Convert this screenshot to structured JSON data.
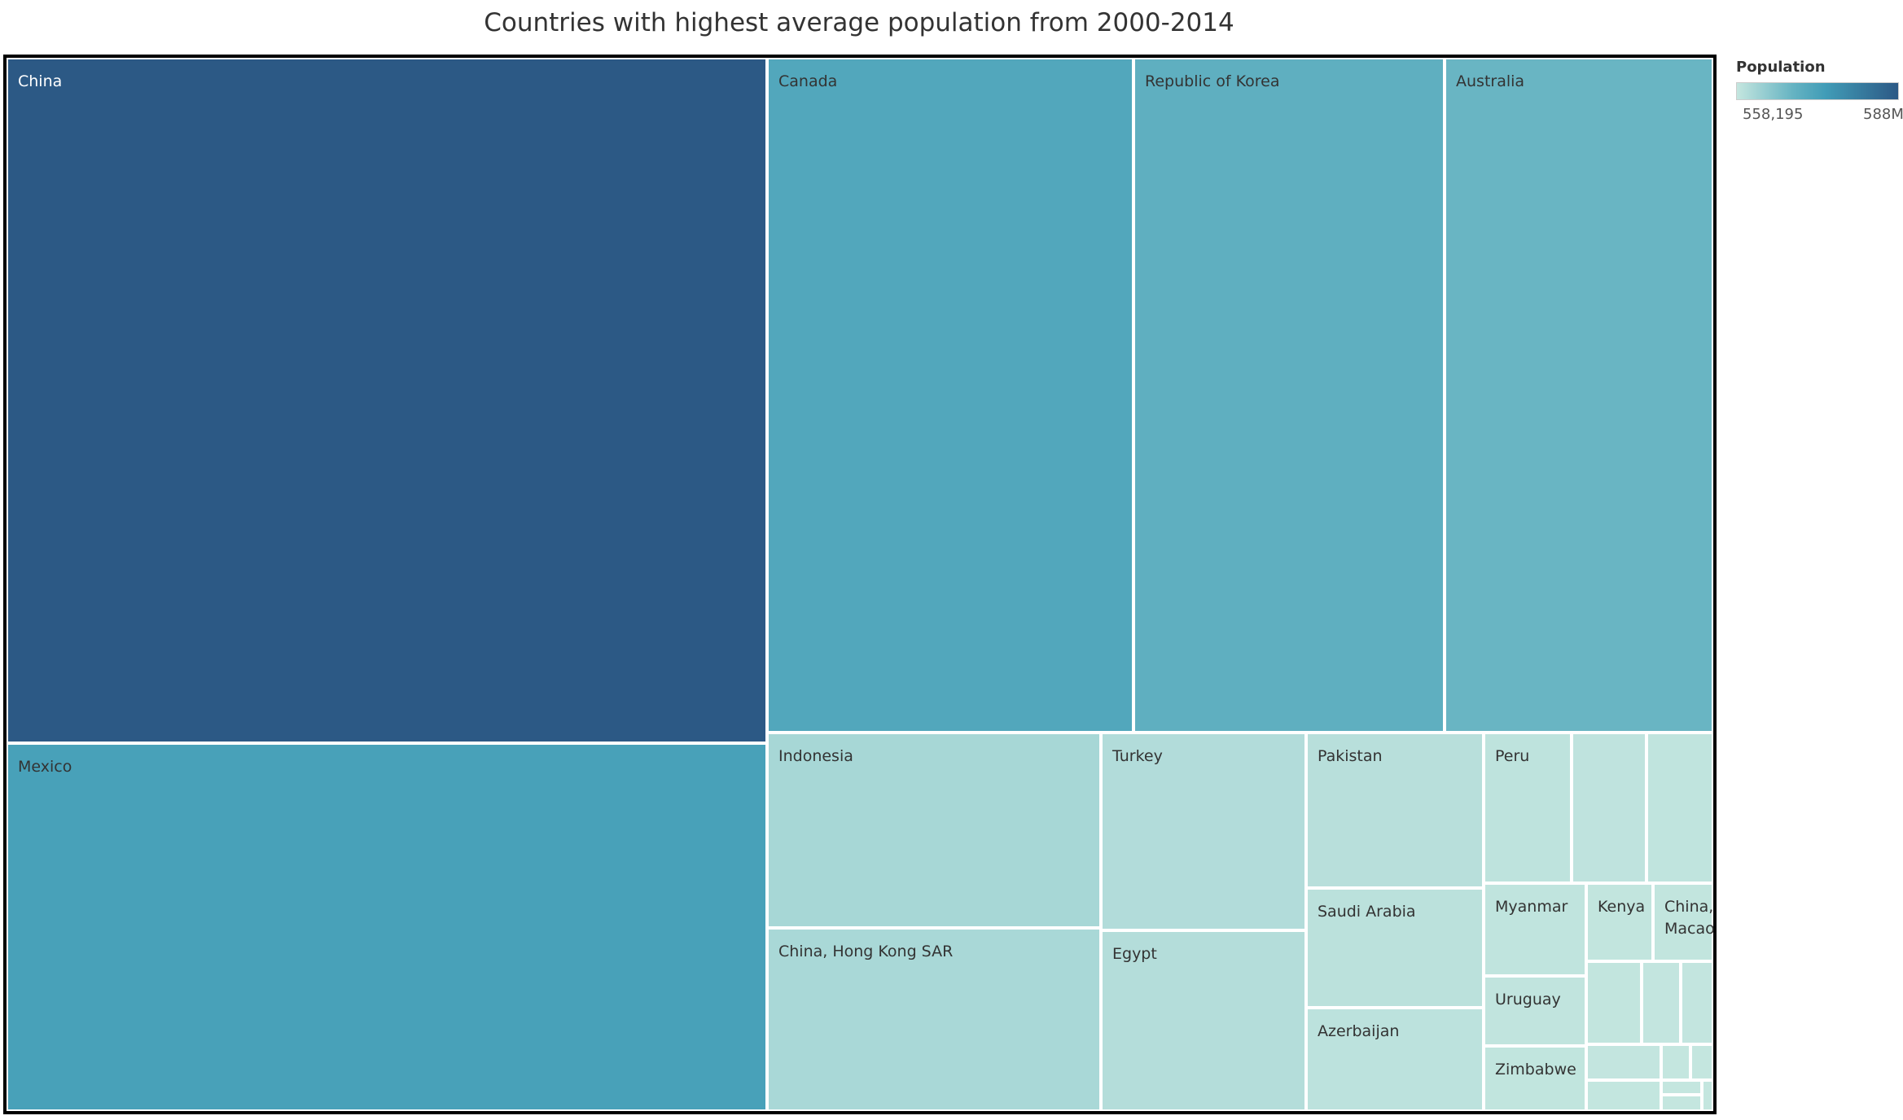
{
  "chart_data": {
    "type": "treemap",
    "title": "Countries with highest average population from 2000-2014",
    "legend": {
      "title": "Population",
      "min_label": "558,195",
      "max_label": "588M",
      "min_value": 558195,
      "max_value": 588000000,
      "color_min": "#c4e6df",
      "color_max": "#2c5985",
      "placement": "top-right"
    },
    "cells": [
      {
        "label": "China",
        "value": 588000000
      },
      {
        "label": "Mexico",
        "value": 300000000
      },
      {
        "label": "Canada",
        "value": 267000000
      },
      {
        "label": "Republic of Korea",
        "value": 227000000
      },
      {
        "label": "Australia",
        "value": 198000000
      },
      {
        "label": "Indonesia",
        "value": 63000000
      },
      {
        "label": "China, Hong Kong SAR",
        "value": 59000000
      },
      {
        "label": "Turkey",
        "value": 39000000
      },
      {
        "label": "Egypt",
        "value": 36000000
      },
      {
        "label": "Pakistan",
        "value": 27000000
      },
      {
        "label": "Saudi Arabia",
        "value": 21000000
      },
      {
        "label": "Azerbaijan",
        "value": 18000000
      },
      {
        "label": "Peru",
        "value": 13000000
      },
      {
        "label": "",
        "value": 11000000
      },
      {
        "label": "",
        "value": 10000000
      },
      {
        "label": "Myanmar",
        "value": 9000000
      },
      {
        "label": "Kenya",
        "value": 5500000
      },
      {
        "label": "China, Macao",
        "value": 5300000
      },
      {
        "label": "Uruguay",
        "value": 7000000
      },
      {
        "label": "",
        "value": 4300000
      },
      {
        "label": "",
        "value": 3000000
      },
      {
        "label": "",
        "value": 3000000
      },
      {
        "label": "Zimbabwe",
        "value": 6600000
      },
      {
        "label": "",
        "value": 3200000
      },
      {
        "label": "",
        "value": 1200000
      },
      {
        "label": "",
        "value": 1000000
      },
      {
        "label": "",
        "value": 2300000
      },
      {
        "label": "",
        "value": 1100000
      },
      {
        "label": "",
        "value": 700000
      },
      {
        "label": "",
        "value": 558195
      }
    ]
  }
}
